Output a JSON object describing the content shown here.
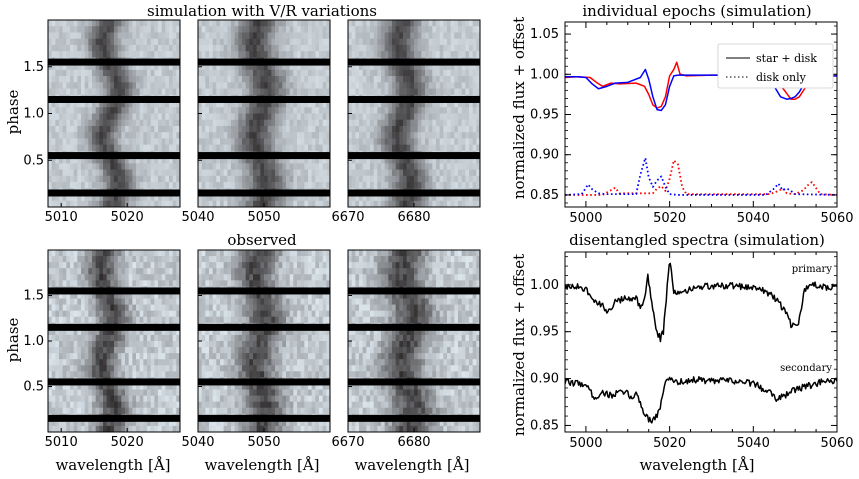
{
  "chart_data": [
    {
      "id": "sim_trailed",
      "type": "heatmap",
      "title": "simulation with V/R variations",
      "xlabel": "",
      "ylabel": "phase",
      "ylim": [
        0.0,
        2.0
      ],
      "yticks": [
        {
          "value": 0.5,
          "label": "0.5"
        },
        {
          "value": 1.0,
          "label": "1.0"
        },
        {
          "value": 1.5,
          "label": "1.5"
        }
      ],
      "gap_phases": [
        0.15,
        0.55,
        1.15,
        1.55
      ],
      "panels": [
        {
          "xlim": [
            5008,
            5028
          ],
          "xticks": [
            {
              "value": 5010,
              "label": "5010"
            },
            {
              "value": 5020,
              "label": "5020"
            }
          ],
          "line_center": 5017.5,
          "line_width": 1.6,
          "wobble": 1.3
        },
        {
          "xlim": [
            5040,
            5060
          ],
          "xticks": [
            {
              "value": 5040,
              "label": "5040"
            },
            {
              "value": 5050,
              "label": "5050"
            }
          ],
          "line_center": 5049.5,
          "line_width": 2.0,
          "wobble": 1.0
        },
        {
          "xlim": [
            6670,
            6690
          ],
          "xticks": [
            {
              "value": 6670,
              "label": "6670"
            },
            {
              "value": 6680,
              "label": "6680"
            }
          ],
          "line_center": 6678.5,
          "line_width": 1.8,
          "wobble": 1.0
        }
      ]
    },
    {
      "id": "obs_trailed",
      "type": "heatmap",
      "title": "observed",
      "xlabel": "wavelength [Å]",
      "ylabel": "phase",
      "ylim": [
        0.0,
        2.0
      ],
      "yticks": [
        {
          "value": 0.5,
          "label": "0.5"
        },
        {
          "value": 1.0,
          "label": "1.0"
        },
        {
          "value": 1.5,
          "label": "1.5"
        }
      ],
      "gap_phases": [
        0.15,
        0.55,
        1.15,
        1.55
      ],
      "panels": [
        {
          "xlim": [
            5008,
            5028
          ],
          "xticks": [
            {
              "value": 5010,
              "label": "5010"
            },
            {
              "value": 5020,
              "label": "5020"
            }
          ],
          "line_center": 5017.0,
          "line_width": 1.6,
          "wobble": 1.0
        },
        {
          "xlim": [
            5040,
            5060
          ],
          "xticks": [
            {
              "value": 5040,
              "label": "5040"
            },
            {
              "value": 5050,
              "label": "5050"
            }
          ],
          "line_center": 5049.5,
          "line_width": 2.0,
          "wobble": 0.8
        },
        {
          "xlim": [
            6670,
            6690
          ],
          "xticks": [
            {
              "value": 6670,
              "label": "6670"
            },
            {
              "value": 6680,
              "label": "6680"
            }
          ],
          "line_center": 6679.0,
          "line_width": 2.2,
          "wobble": 1.0
        }
      ]
    },
    {
      "id": "epochs",
      "type": "line",
      "title": "individual epochs (simulation)",
      "xlabel": "",
      "ylabel": "normalized flux + offset",
      "xlim": [
        4995,
        5060
      ],
      "ylim": [
        0.835,
        1.065
      ],
      "xticks": [
        5000,
        5020,
        5040,
        5060
      ],
      "yticks": [
        {
          "value": 0.85,
          "label": "0.85"
        },
        {
          "value": 0.9,
          "label": "0.90"
        },
        {
          "value": 0.95,
          "label": "0.95"
        },
        {
          "value": 1.0,
          "label": "1.00"
        },
        {
          "value": 1.05,
          "label": "1.05"
        }
      ],
      "legend": {
        "position": "top-right",
        "entries": [
          {
            "label": "star + disk",
            "style": "solid"
          },
          {
            "label": "disk only",
            "style": "dotted"
          }
        ]
      },
      "series": [
        {
          "name": "epoch 1 star + disk",
          "color": "#ff0000",
          "style": "solid",
          "x": [
            4995,
            4998,
            5001,
            5002.5,
            5004,
            5006,
            5008,
            5012,
            5014,
            5015,
            5016,
            5017,
            5018,
            5019,
            5020,
            5021,
            5021.7,
            5022.5,
            5024,
            5030,
            5040,
            5044,
            5046,
            5048,
            5049,
            5050,
            5051,
            5052,
            5054,
            5056,
            5060
          ],
          "y": [
            0.996,
            0.997,
            0.996,
            0.99,
            0.985,
            0.989,
            0.988,
            0.989,
            0.985,
            0.975,
            0.962,
            0.958,
            0.96,
            0.972,
            0.998,
            1.006,
            1.015,
            1.0,
            0.998,
            0.999,
            0.999,
            0.998,
            0.99,
            0.976,
            0.969,
            0.969,
            0.972,
            0.98,
            0.995,
            0.998,
            0.998
          ]
        },
        {
          "name": "epoch 2 star + disk",
          "color": "#0000ff",
          "style": "solid",
          "x": [
            4995,
            4998,
            5000,
            5001.5,
            5003,
            5005,
            5007,
            5010,
            5013,
            5014.2,
            5015,
            5016,
            5017,
            5018,
            5019,
            5020,
            5021,
            5022,
            5030,
            5040,
            5043,
            5045,
            5046.5,
            5048,
            5049,
            5050,
            5051,
            5053,
            5056,
            5060
          ],
          "y": [
            0.997,
            0.997,
            0.996,
            0.988,
            0.982,
            0.985,
            0.989,
            0.99,
            0.996,
            1.006,
            0.994,
            0.972,
            0.956,
            0.955,
            0.962,
            0.985,
            0.998,
            0.999,
            0.999,
            0.999,
            0.997,
            0.985,
            0.972,
            0.969,
            0.97,
            0.972,
            0.978,
            0.996,
            0.998,
            0.998
          ]
        },
        {
          "name": "epoch 1 disk only",
          "color": "#ff0000",
          "style": "dotted",
          "x": [
            4995,
            5004,
            5006,
            5007,
            5008,
            5016,
            5017,
            5018,
            5019,
            5020,
            5021,
            5022,
            5023,
            5024,
            5044,
            5046,
            5047,
            5048,
            5050,
            5052,
            5053,
            5054,
            5056,
            5060
          ],
          "y": [
            0.85,
            0.85,
            0.856,
            0.859,
            0.852,
            0.852,
            0.858,
            0.861,
            0.855,
            0.87,
            0.893,
            0.888,
            0.86,
            0.851,
            0.851,
            0.855,
            0.858,
            0.852,
            0.851,
            0.856,
            0.862,
            0.866,
            0.851,
            0.85
          ]
        },
        {
          "name": "epoch 2 disk only",
          "color": "#0000ff",
          "style": "dotted",
          "x": [
            4995,
            4999,
            5000.5,
            5001.5,
            5003,
            5005,
            5012,
            5013,
            5014.2,
            5015,
            5016,
            5017,
            5018,
            5019,
            5020,
            5022,
            5043,
            5045,
            5046,
            5047,
            5048,
            5049,
            5050,
            5060
          ],
          "y": [
            0.85,
            0.851,
            0.863,
            0.857,
            0.852,
            0.851,
            0.851,
            0.875,
            0.896,
            0.872,
            0.86,
            0.868,
            0.873,
            0.86,
            0.851,
            0.85,
            0.85,
            0.858,
            0.864,
            0.856,
            0.858,
            0.855,
            0.851,
            0.85
          ]
        }
      ]
    },
    {
      "id": "disentangled",
      "type": "line",
      "title": "disentangled spectra (simulation)",
      "xlabel": "wavelength [Å]",
      "ylabel": "normalized flux + offset",
      "xlim": [
        4995,
        5060
      ],
      "ylim": [
        0.843,
        1.035
      ],
      "xticks": [
        5000,
        5020,
        5040,
        5060
      ],
      "yticks": [
        {
          "value": 0.85,
          "label": "0.85"
        },
        {
          "value": 0.9,
          "label": "0.90"
        },
        {
          "value": 0.95,
          "label": "0.95"
        },
        {
          "value": 1.0,
          "label": "1.00"
        }
      ],
      "annotations": [
        {
          "text": "primary",
          "x": 5058,
          "y": 1.013
        },
        {
          "text": "secondary",
          "x": 5058,
          "y": 0.912
        }
      ],
      "series": [
        {
          "name": "primary",
          "color": "#000000",
          "style": "solid",
          "x": [
            4995,
            4998,
            5000,
            5001,
            5002,
            5003,
            5004,
            5005,
            5006,
            5007,
            5008,
            5010,
            5012,
            5013,
            5014,
            5014.8,
            5015.5,
            5016.2,
            5017,
            5017.8,
            5018.5,
            5019.2,
            5019.9,
            5020.4,
            5021,
            5022,
            5023,
            5025,
            5028,
            5032,
            5036,
            5040,
            5043,
            5045,
            5046,
            5047,
            5048,
            5049,
            5050,
            5050.8,
            5051.5,
            5052,
            5053,
            5054,
            5056,
            5058,
            5060
          ],
          "y": [
            0.997,
            0.998,
            0.996,
            0.988,
            0.982,
            0.982,
            0.977,
            0.972,
            0.976,
            0.982,
            0.983,
            0.986,
            0.985,
            0.977,
            0.983,
            1.008,
            0.99,
            0.968,
            0.95,
            0.943,
            0.95,
            0.985,
            1.024,
            1.018,
            0.992,
            0.99,
            0.994,
            0.995,
            0.998,
            0.999,
            0.999,
            0.997,
            0.993,
            0.987,
            0.982,
            0.975,
            0.968,
            0.958,
            0.955,
            0.96,
            0.975,
            0.992,
            0.998,
            1.0,
            0.999,
            0.997,
            0.998
          ]
        },
        {
          "name": "secondary",
          "color": "#000000",
          "style": "solid",
          "x": [
            4995,
            4998,
            5000,
            5001,
            5002,
            5004,
            5006,
            5008,
            5010,
            5011,
            5012,
            5013,
            5014,
            5015,
            5016,
            5017,
            5018,
            5019,
            5020,
            5021,
            5022,
            5026,
            5030,
            5034,
            5038,
            5040,
            5042,
            5044,
            5045.5,
            5047,
            5048,
            5050,
            5052,
            5054,
            5056,
            5060
          ],
          "y": [
            0.896,
            0.895,
            0.894,
            0.886,
            0.88,
            0.885,
            0.882,
            0.885,
            0.884,
            0.879,
            0.884,
            0.875,
            0.862,
            0.857,
            0.856,
            0.861,
            0.874,
            0.895,
            0.901,
            0.898,
            0.896,
            0.899,
            0.897,
            0.898,
            0.896,
            0.895,
            0.89,
            0.887,
            0.878,
            0.882,
            0.883,
            0.888,
            0.891,
            0.893,
            0.896,
            0.897
          ]
        }
      ]
    }
  ]
}
